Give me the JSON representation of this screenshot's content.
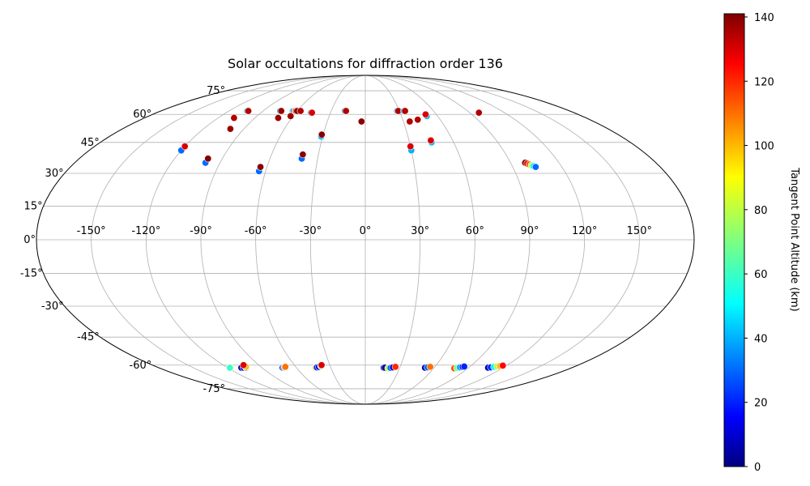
{
  "chart_data": {
    "type": "scatter",
    "projection": "mollweide",
    "title": "Solar occultations for diffraction order 136",
    "grid": true,
    "colormap": "jet",
    "colorbar": {
      "label": "Tangent Point Altitude (km)",
      "range": [
        0,
        141
      ],
      "ticks": [
        "0",
        "20",
        "40",
        "60",
        "80",
        "100",
        "120",
        "140"
      ],
      "tick_values": [
        0,
        20,
        40,
        60,
        80,
        100,
        120,
        140
      ],
      "placement": "right"
    },
    "lon_ticks": [
      "-150°",
      "-120°",
      "-90°",
      "-60°",
      "-30°",
      "0°",
      "30°",
      "60°",
      "90°",
      "120°",
      "150°"
    ],
    "lon_tick_values": [
      -150,
      -120,
      -90,
      -60,
      -30,
      0,
      30,
      60,
      90,
      120,
      150
    ],
    "lat_ticks": [
      "75°",
      "60°",
      "45°",
      "30°",
      "15°",
      "0°",
      "-15°",
      "-30°",
      "-45°",
      "-60°",
      "-75°"
    ],
    "lat_tick_values": [
      75,
      60,
      45,
      30,
      15,
      0,
      -15,
      -30,
      -45,
      -60,
      -75
    ],
    "series": [
      {
        "lon": [
          -118,
          -118
        ],
        "lat": [
          -61.5,
          -61.5
        ],
        "alt": [
          10,
          60
        ]
      },
      {
        "lon": [
          -108,
          -106,
          -104,
          -103,
          -103
        ],
        "lat": [
          -61.5,
          -61.5,
          -61.5,
          -61.0,
          -60.0
        ],
        "alt": [
          5,
          15,
          40,
          100,
          130
        ]
      },
      {
        "lon": [
          -72,
          -71,
          -70,
          -69
        ],
        "lat": [
          -61.5,
          -61.5,
          -61.3,
          -61.0
        ],
        "alt": [
          0,
          20,
          60,
          110
        ]
      },
      {
        "lon": [
          -43,
          -42,
          -40,
          -38,
          -37
        ],
        "lat": [
          -61.5,
          -61.3,
          -61.0,
          -60.5,
          -60.0
        ],
        "alt": [
          100,
          20,
          10,
          80,
          130
        ]
      },
      {
        "lon": [
          16,
          17
        ],
        "lat": [
          -61.5,
          -61.5
        ],
        "alt": [
          0,
          5
        ]
      },
      {
        "lon": [
          20,
          22,
          24,
          26
        ],
        "lat": [
          -61.8,
          -61.6,
          -61.3,
          -61.0
        ],
        "alt": [
          80,
          30,
          10,
          120
        ]
      },
      {
        "lon": [
          52,
          54,
          56
        ],
        "lat": [
          -61.5,
          -61.3,
          -61.0
        ],
        "alt": [
          5,
          30,
          110
        ]
      },
      {
        "lon": [
          78,
          80,
          82,
          84,
          85
        ],
        "lat": [
          -61.8,
          -61.6,
          -61.3,
          -61.0,
          -60.8
        ],
        "alt": [
          115,
          70,
          40,
          10,
          20
        ]
      },
      {
        "lon": [
          107,
          109,
          111,
          113,
          115,
          117
        ],
        "lat": [
          -61.5,
          -61.3,
          -61.0,
          -60.7,
          -60.5,
          -60.3
        ],
        "alt": [
          5,
          20,
          50,
          80,
          100,
          125
        ]
      },
      {
        "lon": [
          -120,
          -120
        ],
        "lat": [
          41,
          43
        ],
        "alt": [
          30,
          130
        ]
      },
      {
        "lon": [
          -104,
          -103
        ],
        "lat": [
          62,
          62
        ],
        "alt": [
          40,
          135
        ]
      },
      {
        "lon": [
          -107
        ],
        "lat": [
          58
        ],
        "alt": [
          135
        ]
      },
      {
        "lon": [
          -100
        ],
        "lat": [
          52
        ],
        "alt": [
          138
        ]
      },
      {
        "lon": [
          -99,
          -99
        ],
        "lat": [
          35,
          37
        ],
        "alt": [
          30,
          140
        ]
      },
      {
        "lon": [
          -75,
          -74
        ],
        "lat": [
          62,
          62
        ],
        "alt": [
          40,
          138
        ]
      },
      {
        "lon": [
          -71
        ],
        "lat": [
          58
        ],
        "alt": [
          138
        ]
      },
      {
        "lon": [
          -64,
          -63,
          -62,
          -61,
          -60
        ],
        "lat": [
          62,
          62,
          62,
          62,
          62
        ],
        "alt": [
          50,
          20,
          100,
          130,
          140
        ]
      },
      {
        "lon": [
          -62
        ],
        "lat": [
          59
        ],
        "alt": [
          138
        ]
      },
      {
        "lon": [
          -64,
          -64
        ],
        "lat": [
          31,
          33
        ],
        "alt": [
          30,
          140
        ]
      },
      {
        "lon": [
          -57
        ],
        "lat": [
          62
        ],
        "alt": [
          135
        ]
      },
      {
        "lon": [
          -47,
          -46
        ],
        "lat": [
          61,
          61
        ],
        "alt": [
          40,
          130
        ]
      },
      {
        "lon": [
          -40,
          -40
        ],
        "lat": [
          37,
          39
        ],
        "alt": [
          30,
          140
        ]
      },
      {
        "lon": [
          -31,
          -31
        ],
        "lat": [
          48,
          49
        ],
        "alt": [
          40,
          140
        ]
      },
      {
        "lon": [
          -18,
          -17
        ],
        "lat": [
          62,
          62
        ],
        "alt": [
          40,
          135
        ]
      },
      {
        "lon": [
          -3
        ],
        "lat": [
          56
        ],
        "alt": [
          140
        ]
      },
      {
        "lon": [
          28,
          29
        ],
        "lat": [
          62,
          62
        ],
        "alt": [
          40,
          135
        ]
      },
      {
        "lon": [
          34,
          35
        ],
        "lat": [
          62,
          62
        ],
        "alt": [
          40,
          135
        ]
      },
      {
        "lon": [
          30,
          30
        ],
        "lat": [
          41,
          43
        ],
        "alt": [
          40,
          130
        ]
      },
      {
        "lon": [
          35
        ],
        "lat": [
          56
        ],
        "alt": [
          135
        ]
      },
      {
        "lon": [
          42
        ],
        "lat": [
          57
        ],
        "alt": [
          135
        ]
      },
      {
        "lon": [
          45,
          45
        ],
        "lat": [
          45,
          46
        ],
        "alt": [
          40,
          130
        ]
      },
      {
        "lon": [
          51,
          51
        ],
        "lat": [
          59,
          60
        ],
        "alt": [
          40,
          130
        ]
      },
      {
        "lon": [
          98,
          98
        ],
        "lat": [
          61,
          61
        ],
        "alt": [
          40,
          135
        ]
      },
      {
        "lon": [
          99,
          100,
          101,
          102,
          103,
          104
        ],
        "lat": [
          35,
          34.6,
          34.2,
          33.8,
          33.4,
          33.0
        ],
        "alt": [
          140,
          130,
          115,
          80,
          50,
          30
        ]
      }
    ]
  }
}
